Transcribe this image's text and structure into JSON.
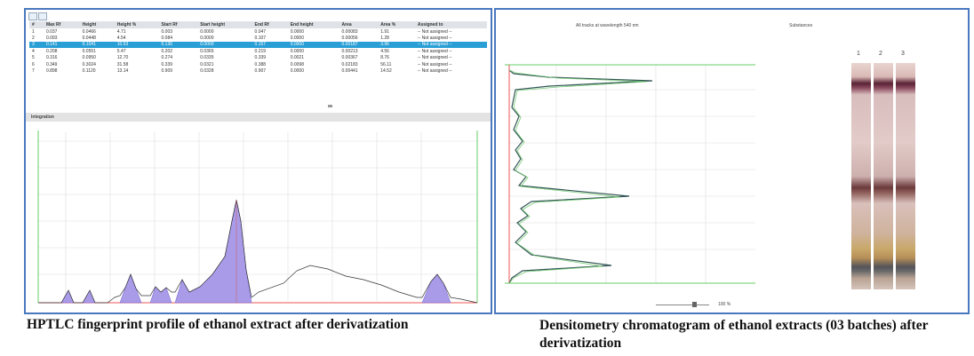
{
  "left_panel": {
    "table": {
      "columns": [
        "#",
        "Max Rf",
        "Height",
        "Height %",
        "Start Rf",
        "Start height",
        "End Rf",
        "End height",
        "Area",
        "Area %",
        "Assigned to"
      ],
      "rows": [
        [
          "1",
          "0.037",
          "0.0466",
          "4.71",
          "0.003",
          "0.0000",
          "0.047",
          "0.0000",
          "0.00083",
          "1.91",
          "-- Not assigned --"
        ],
        [
          "2",
          "0.093",
          "0.0448",
          "4.54",
          "0.084",
          "0.0000",
          "0.107",
          "0.0000",
          "0.00056",
          "1.28",
          "-- Not assigned --"
        ],
        [
          "3",
          "0.141",
          "0.1041",
          "10.53",
          "0.136",
          "0.0000",
          "0.157",
          "0.0000",
          "0.00187",
          "3.96",
          "-- Not assigned --"
        ],
        [
          "4",
          "0.208",
          "0.0551",
          "5.47",
          "0.202",
          "0.0365",
          "0.219",
          "0.0000",
          "0.00213",
          "4.56",
          "-- Not assigned --"
        ],
        [
          "5",
          "0.316",
          "0.0950",
          "12.70",
          "0.274",
          "0.0335",
          "0.339",
          "0.0021",
          "0.00367",
          "8.76",
          "-- Not assigned --"
        ],
        [
          "6",
          "0.349",
          "0.3024",
          "31.58",
          "0.339",
          "0.0321",
          "0.388",
          "0.0098",
          "0.02183",
          "56.11",
          "-- Not assigned --"
        ],
        [
          "7",
          "0.898",
          "0.1120",
          "13.14",
          "0.909",
          "0.0328",
          "0.907",
          "0.0000",
          "0.00441",
          "14.52",
          "-- Not assigned --"
        ]
      ]
    },
    "integration_title": "Integration"
  },
  "right_panel": {
    "chart_title": "All tracks at wavelength 540 nm",
    "substances_title": "Substances",
    "tracks": [
      "1",
      "2",
      "3"
    ],
    "zoom": "100 %"
  },
  "captions": [
    "HPTLC fingerprint profile of ethanol extract after derivatization",
    "Densitometry chromatogram of ethanol extracts (03 batches) after derivatization"
  ]
}
